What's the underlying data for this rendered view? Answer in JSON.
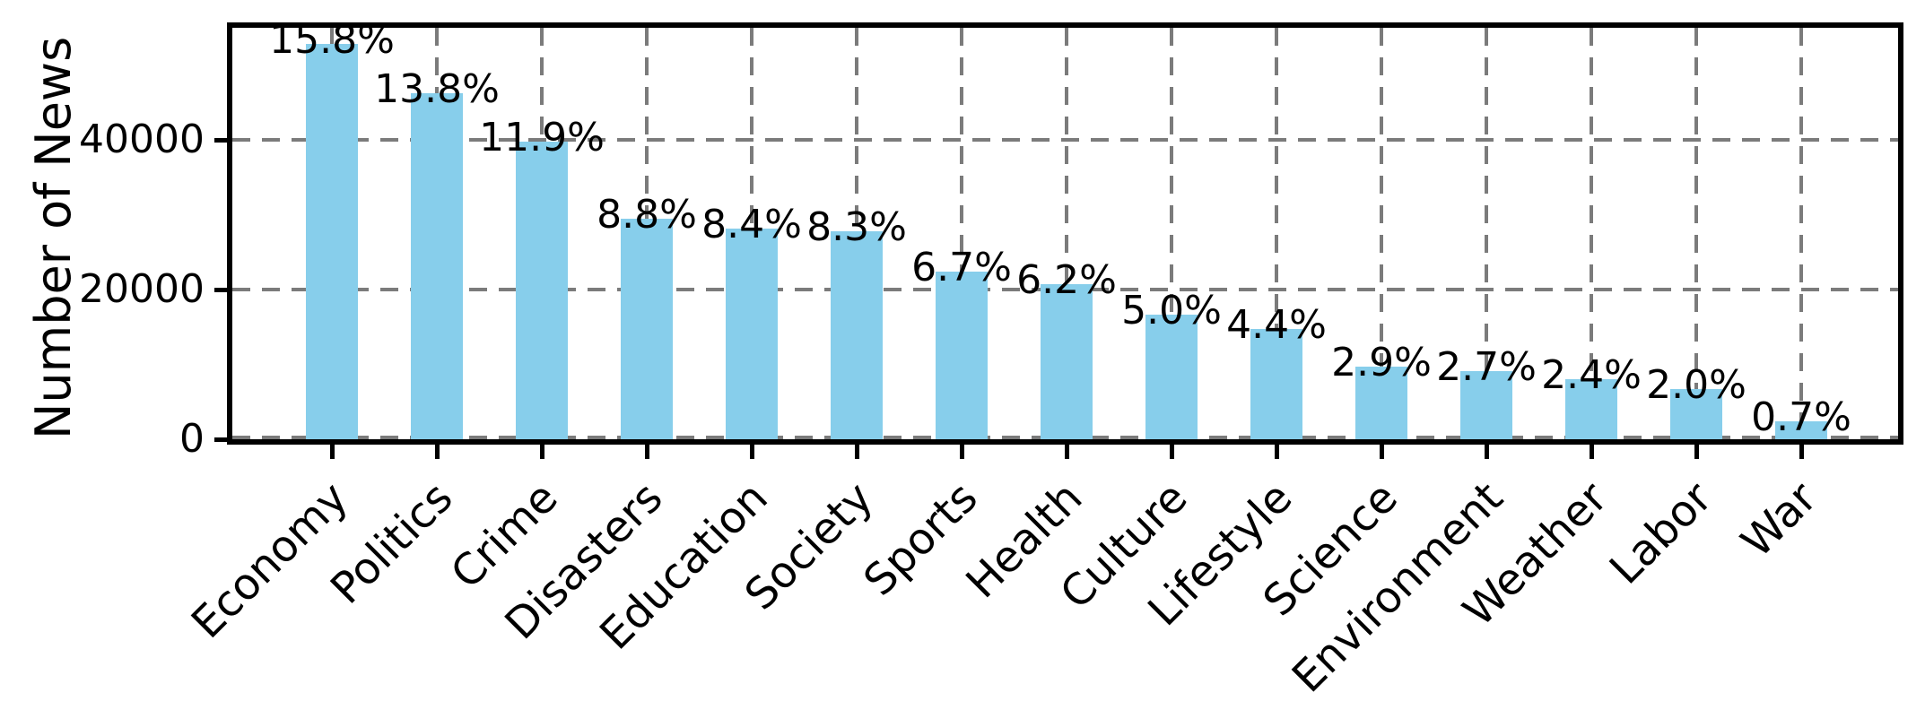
{
  "figure": {
    "background": "#ffffff"
  },
  "chart_data": {
    "type": "bar",
    "title": "",
    "xlabel": "",
    "ylabel": "Number of News",
    "categories": [
      "Economy",
      "Politics",
      "Crime",
      "Disasters",
      "Education",
      "Society",
      "Sports",
      "Health",
      "Culture",
      "Lifestyle",
      "Science",
      "Environment",
      "Weather",
      "Labor",
      "War"
    ],
    "values": [
      52900,
      46200,
      39800,
      29450,
      28100,
      27800,
      22400,
      20750,
      16700,
      14700,
      9700,
      9050,
      8050,
      6700,
      2350
    ],
    "percent_labels": [
      "15.8%",
      "13.8%",
      "11.9%",
      "8.8%",
      "8.4%",
      "8.3%",
      "6.7%",
      "6.2%",
      "5.0%",
      "4.4%",
      "2.9%",
      "2.7%",
      "2.4%",
      "2.0%",
      "0.7%"
    ],
    "y_ticks": [
      0,
      20000,
      40000
    ],
    "y_tick_labels": [
      "0",
      "20000",
      "40000"
    ],
    "ylim": [
      0,
      55000
    ],
    "x_label_rotation_deg": 45,
    "bar_color": "#87CEEB",
    "grid": true,
    "grid_color": "#7b7b7b",
    "grid_style": "dashed",
    "spine_color": "#000000",
    "legend_position": "none"
  }
}
